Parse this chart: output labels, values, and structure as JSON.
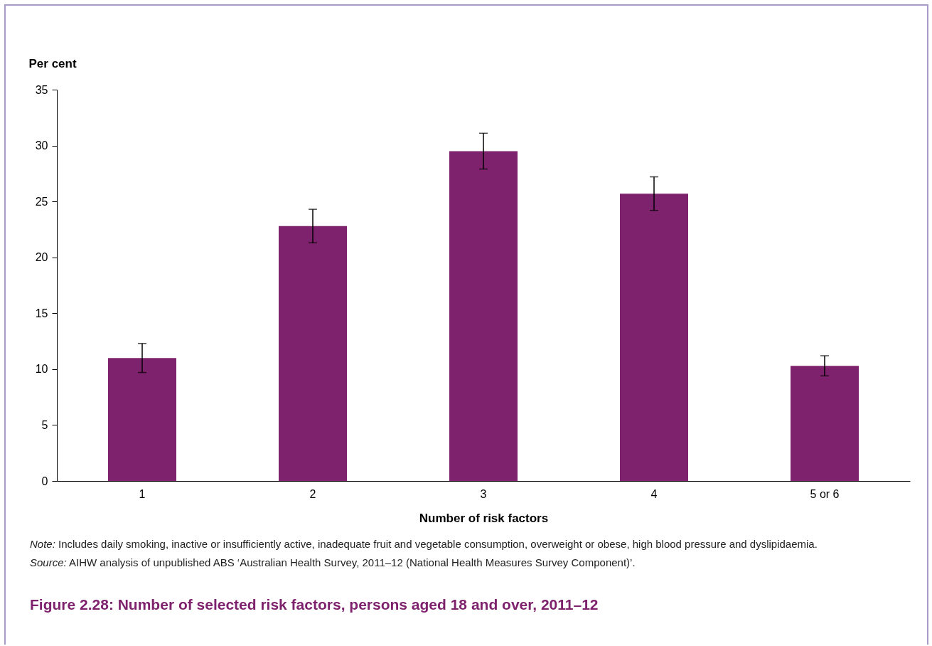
{
  "chart_data": {
    "type": "bar",
    "title": "Figure 2.28: Number of selected risk factors, persons aged 18 and over, 2011–12",
    "xlabel": "Number of risk factors",
    "ylabel": "Per cent",
    "categories": [
      "1",
      "2",
      "3",
      "4",
      "5 or 6"
    ],
    "values": [
      11.0,
      22.8,
      29.5,
      25.7,
      10.3
    ],
    "errors": [
      1.3,
      1.5,
      1.6,
      1.5,
      0.9
    ],
    "color": "#7f226d",
    "ylim": [
      0,
      35
    ],
    "yticks": [
      0,
      5,
      10,
      15,
      20,
      25,
      30,
      35
    ],
    "grid": false,
    "annotations": [
      "Note: Includes daily smoking, inactive or insufficiently active, inadequate fruit and vegetable consumption, overweight or obese, high blood pressure and dyslipidaemia.",
      "Source: AIHW analysis of unpublished ABS ‘Australian Health Survey, 2011–12 (National Health Measures Survey Component)’."
    ]
  }
}
